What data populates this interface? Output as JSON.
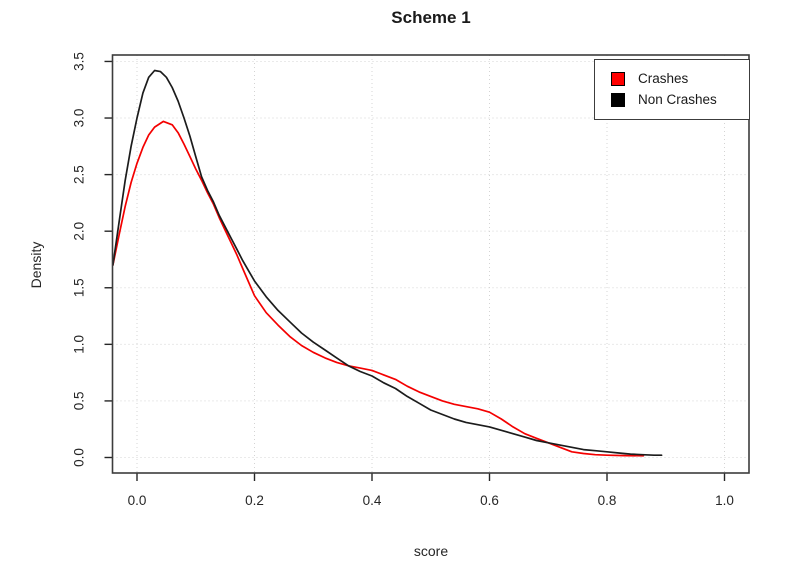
{
  "chart_data": {
    "type": "line",
    "title": "Scheme 1",
    "xlabel": "score",
    "ylabel": "Density",
    "xlim": [
      -0.0417,
      1.0417
    ],
    "ylim": [
      -0.137,
      3.557
    ],
    "x_ticks": [
      "0.0",
      "0.2",
      "0.4",
      "0.6",
      "0.8",
      "1.0"
    ],
    "y_ticks": [
      "0.0",
      "0.5",
      "1.0",
      "1.5",
      "2.0",
      "2.5",
      "3.0",
      "3.5"
    ],
    "grid": "dotted",
    "grid_color": "#d4d4d4",
    "axis_color": "#3c3c3c",
    "legend_position": "topright",
    "series": [
      {
        "name": "Crashes",
        "color": "#f40000",
        "points": [
          [
            -0.041,
            1.7
          ],
          [
            -0.03,
            1.98
          ],
          [
            -0.02,
            2.22
          ],
          [
            -0.01,
            2.43
          ],
          [
            0.0,
            2.6
          ],
          [
            0.01,
            2.74
          ],
          [
            0.02,
            2.85
          ],
          [
            0.03,
            2.92
          ],
          [
            0.045,
            2.97
          ],
          [
            0.06,
            2.94
          ],
          [
            0.07,
            2.87
          ],
          [
            0.08,
            2.77
          ],
          [
            0.09,
            2.66
          ],
          [
            0.1,
            2.55
          ],
          [
            0.11,
            2.45
          ],
          [
            0.12,
            2.34
          ],
          [
            0.13,
            2.24
          ],
          [
            0.14,
            2.12
          ],
          [
            0.15,
            2.01
          ],
          [
            0.16,
            1.9
          ],
          [
            0.17,
            1.79
          ],
          [
            0.18,
            1.67
          ],
          [
            0.19,
            1.55
          ],
          [
            0.2,
            1.43
          ],
          [
            0.22,
            1.28
          ],
          [
            0.24,
            1.17
          ],
          [
            0.26,
            1.07
          ],
          [
            0.28,
            0.99
          ],
          [
            0.3,
            0.93
          ],
          [
            0.32,
            0.88
          ],
          [
            0.34,
            0.84
          ],
          [
            0.36,
            0.81
          ],
          [
            0.38,
            0.79
          ],
          [
            0.4,
            0.77
          ],
          [
            0.42,
            0.73
          ],
          [
            0.44,
            0.69
          ],
          [
            0.46,
            0.63
          ],
          [
            0.48,
            0.58
          ],
          [
            0.5,
            0.54
          ],
          [
            0.52,
            0.5
          ],
          [
            0.54,
            0.47
          ],
          [
            0.56,
            0.45
          ],
          [
            0.58,
            0.43
          ],
          [
            0.6,
            0.4
          ],
          [
            0.62,
            0.34
          ],
          [
            0.64,
            0.27
          ],
          [
            0.66,
            0.21
          ],
          [
            0.68,
            0.17
          ],
          [
            0.7,
            0.13
          ],
          [
            0.72,
            0.09
          ],
          [
            0.74,
            0.05
          ],
          [
            0.76,
            0.035
          ],
          [
            0.78,
            0.025
          ],
          [
            0.8,
            0.02
          ],
          [
            0.83,
            0.017
          ],
          [
            0.862,
            0.015
          ]
        ]
      },
      {
        "name": "Non Crashes",
        "color": "#1c1c1c",
        "points": [
          [
            -0.041,
            1.7
          ],
          [
            -0.03,
            2.1
          ],
          [
            -0.02,
            2.45
          ],
          [
            -0.01,
            2.75
          ],
          [
            0.0,
            3.0
          ],
          [
            0.01,
            3.22
          ],
          [
            0.02,
            3.36
          ],
          [
            0.03,
            3.42
          ],
          [
            0.04,
            3.41
          ],
          [
            0.05,
            3.36
          ],
          [
            0.06,
            3.27
          ],
          [
            0.07,
            3.15
          ],
          [
            0.08,
            3.0
          ],
          [
            0.09,
            2.84
          ],
          [
            0.1,
            2.66
          ],
          [
            0.11,
            2.48
          ],
          [
            0.12,
            2.36
          ],
          [
            0.13,
            2.26
          ],
          [
            0.14,
            2.14
          ],
          [
            0.15,
            2.04
          ],
          [
            0.16,
            1.94
          ],
          [
            0.17,
            1.84
          ],
          [
            0.18,
            1.74
          ],
          [
            0.19,
            1.65
          ],
          [
            0.2,
            1.56
          ],
          [
            0.22,
            1.42
          ],
          [
            0.24,
            1.3
          ],
          [
            0.26,
            1.2
          ],
          [
            0.28,
            1.1
          ],
          [
            0.3,
            1.02
          ],
          [
            0.32,
            0.95
          ],
          [
            0.34,
            0.88
          ],
          [
            0.36,
            0.81
          ],
          [
            0.38,
            0.76
          ],
          [
            0.4,
            0.72
          ],
          [
            0.42,
            0.66
          ],
          [
            0.44,
            0.61
          ],
          [
            0.46,
            0.54
          ],
          [
            0.48,
            0.48
          ],
          [
            0.5,
            0.42
          ],
          [
            0.52,
            0.38
          ],
          [
            0.54,
            0.34
          ],
          [
            0.56,
            0.31
          ],
          [
            0.58,
            0.29
          ],
          [
            0.6,
            0.27
          ],
          [
            0.62,
            0.24
          ],
          [
            0.64,
            0.21
          ],
          [
            0.66,
            0.18
          ],
          [
            0.68,
            0.15
          ],
          [
            0.7,
            0.13
          ],
          [
            0.72,
            0.11
          ],
          [
            0.74,
            0.09
          ],
          [
            0.76,
            0.07
          ],
          [
            0.78,
            0.06
          ],
          [
            0.8,
            0.05
          ],
          [
            0.82,
            0.04
          ],
          [
            0.84,
            0.03
          ],
          [
            0.86,
            0.025
          ],
          [
            0.88,
            0.02
          ],
          [
            0.893,
            0.02
          ]
        ]
      }
    ]
  },
  "legend": {
    "items": [
      {
        "label": "Crashes",
        "color": "#ff0000",
        "swatch": "red-square-icon"
      },
      {
        "label": "Non Crashes",
        "color": "#000000",
        "swatch": "black-square-icon"
      }
    ]
  }
}
